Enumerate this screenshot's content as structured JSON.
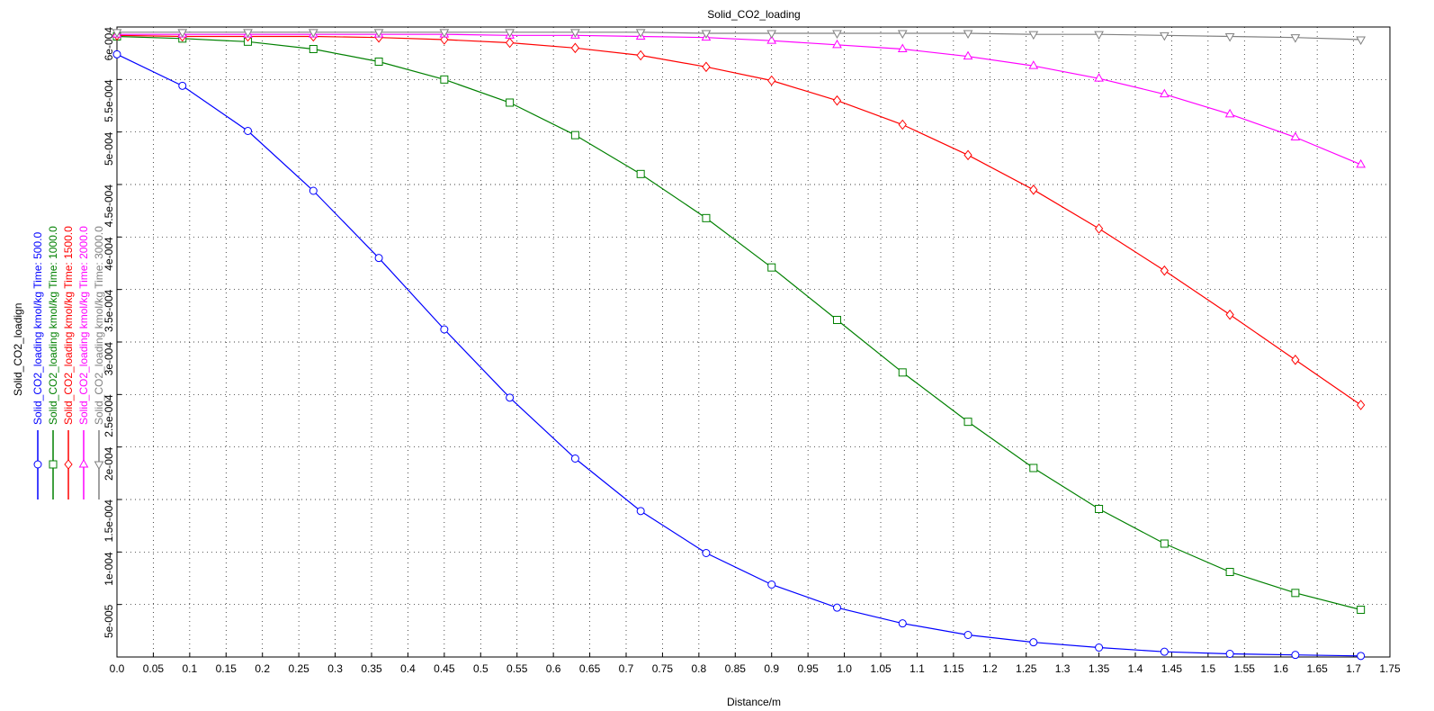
{
  "chart_data": {
    "type": "line",
    "title": "Solid_CO2_loading",
    "x_label": "Distance/m",
    "legend_title": "Solid_CO2_loadign",
    "x": [
      0,
      0.09,
      0.18,
      0.27,
      0.36,
      0.45,
      0.54,
      0.63,
      0.72,
      0.81,
      0.9,
      0.99,
      1.08,
      1.17,
      1.26,
      1.35,
      1.44,
      1.53,
      1.62,
      1.71
    ],
    "series": [
      {
        "name": "Solid_CO2_loading kmol/kg Time: 500.0",
        "color": "#0000ff",
        "marker": "circle",
        "values": [
          0.000574,
          0.000544,
          0.000501,
          0.000444,
          0.00038,
          0.000312,
          0.000247,
          0.000189,
          0.000139,
          9.9e-05,
          6.9e-05,
          4.7e-05,
          3.2e-05,
          2.1e-05,
          1.4e-05,
          9e-06,
          5e-06,
          3e-06,
          2e-06,
          1e-06
        ]
      },
      {
        "name": "Solid_CO2_loading kmol/kg Time: 1000.0",
        "color": "#008000",
        "marker": "square",
        "values": [
          0.000591,
          0.000589,
          0.000586,
          0.000579,
          0.000567,
          0.00055,
          0.000528,
          0.000497,
          0.00046,
          0.000418,
          0.000371,
          0.000321,
          0.000271,
          0.000224,
          0.00018,
          0.000141,
          0.000108,
          8.1e-05,
          6.1e-05,
          4.5e-05
        ]
      },
      {
        "name": "Solid_CO2_loading kmol/kg Time: 1500.0",
        "color": "#ff0000",
        "marker": "diamond",
        "values": [
          0.000592,
          0.000591,
          0.000591,
          0.000591,
          0.00059,
          0.000588,
          0.000585,
          0.00058,
          0.000573,
          0.000562,
          0.000549,
          0.00053,
          0.000507,
          0.000478,
          0.000445,
          0.000408,
          0.000368,
          0.000326,
          0.000283,
          0.00024
        ]
      },
      {
        "name": "Solid_CO2_loading kmol/kg Time: 2000.0",
        "color": "#ff00ff",
        "marker": "triangle-up",
        "values": [
          0.000593,
          0.000593,
          0.000593,
          0.000593,
          0.000593,
          0.000593,
          0.000592,
          0.000592,
          0.000591,
          0.00059,
          0.000587,
          0.000583,
          0.000579,
          0.000572,
          0.000563,
          0.000551,
          0.000536,
          0.000517,
          0.000495,
          0.000469
        ]
      },
      {
        "name": "Solid_CO2_loading kmol/kg Time: 3000.0",
        "color": "#808080",
        "marker": "triangle-down",
        "values": [
          0.000595,
          0.000595,
          0.000595,
          0.000595,
          0.000595,
          0.000595,
          0.000595,
          0.000595,
          0.000595,
          0.000594,
          0.000594,
          0.000594,
          0.000594,
          0.000594,
          0.000593,
          0.000593,
          0.000592,
          0.000591,
          0.00059,
          0.000588
        ]
      }
    ],
    "xlim": [
      0,
      1.75
    ],
    "xticks": [
      {
        "value": 0,
        "label": "0.0"
      },
      0.05,
      0.1,
      0.15,
      0.2,
      0.25,
      0.3,
      0.35,
      0.4,
      0.45,
      0.5,
      0.55,
      0.6,
      0.65,
      0.7,
      0.75,
      0.8,
      0.85,
      0.9,
      0.95,
      {
        "value": 1,
        "label": "1.0"
      },
      1.05,
      1.1,
      1.15,
      1.2,
      1.25,
      1.3,
      1.35,
      1.4,
      1.45,
      1.5,
      1.55,
      1.6,
      1.65,
      1.7,
      1.75
    ],
    "ylim": [
      0,
      0.0006
    ],
    "yticks": [
      {
        "value": 5e-05,
        "label": "5e-005"
      },
      {
        "value": 0.0001,
        "label": "1e-004"
      },
      {
        "value": 0.00015,
        "label": "1.5e-004"
      },
      {
        "value": 0.0002,
        "label": "2e-004"
      },
      {
        "value": 0.00025,
        "label": "2.5e-004"
      },
      {
        "value": 0.0003,
        "label": "3e-004"
      },
      {
        "value": 0.00035,
        "label": "3.5e-004"
      },
      {
        "value": 0.0004,
        "label": "4e-004"
      },
      {
        "value": 0.00045,
        "label": "4.5e-004"
      },
      {
        "value": 0.0005,
        "label": "5e-004"
      },
      {
        "value": 0.00055,
        "label": "5.5e-004"
      },
      {
        "value": 0.0006,
        "label": "6e-004"
      }
    ],
    "grid": true
  }
}
